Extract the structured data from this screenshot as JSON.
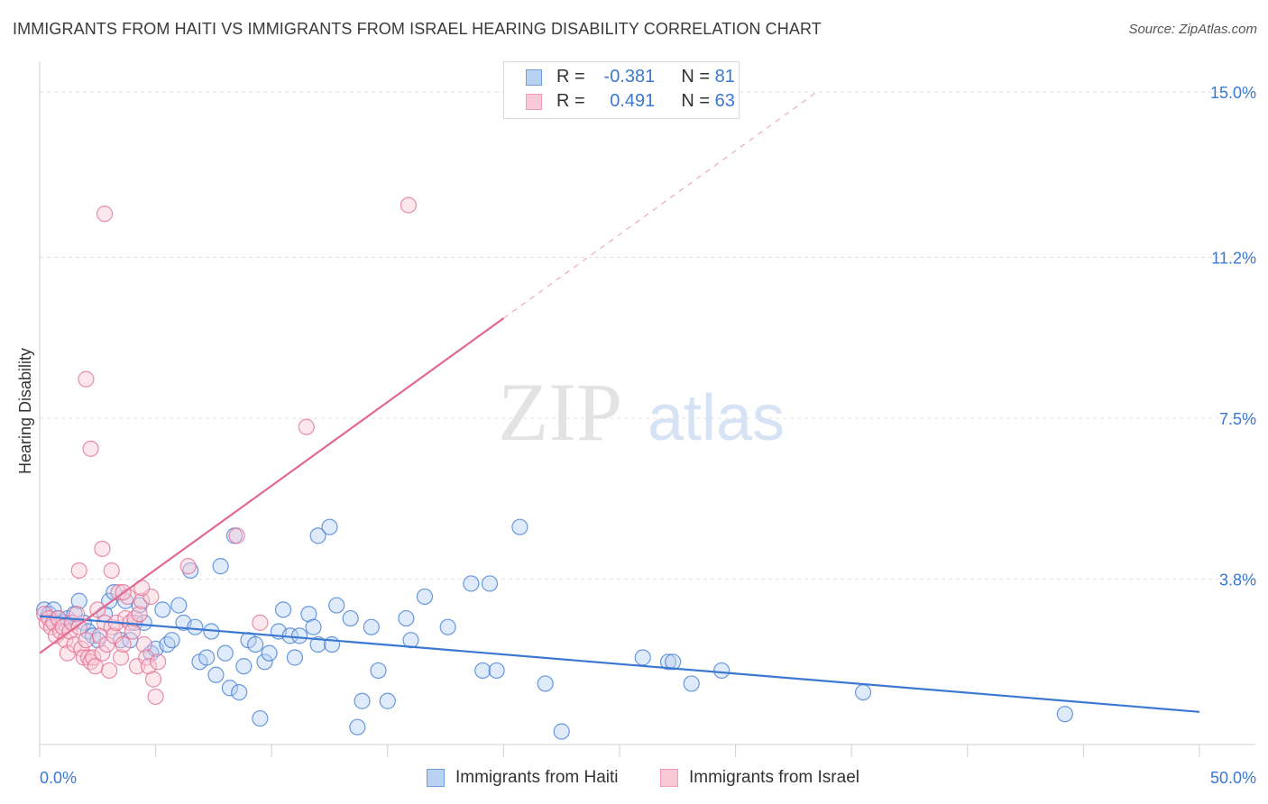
{
  "title": "IMMIGRANTS FROM HAITI VS IMMIGRANTS FROM ISRAEL HEARING DISABILITY CORRELATION CHART",
  "source": "Source: ZipAtlas.com",
  "watermark": {
    "zip": "ZIP",
    "atlas": "atlas"
  },
  "legend": {
    "rows": [
      {
        "r_label": "R =",
        "r_value": "-0.381",
        "n_label": "N =",
        "n_value": "81",
        "color": "#6c9de0",
        "fill": "#b9d1f3"
      },
      {
        "r_label": "R =",
        "r_value": "0.491",
        "n_label": "N =",
        "n_value": "63",
        "color": "#f09ab3",
        "fill": "#f9c9d7"
      }
    ]
  },
  "bottom_legend": [
    "Immigrants from Haiti",
    "Immigrants from Israel"
  ],
  "chart_data": {
    "type": "scatter",
    "title": "IMMIGRANTS FROM HAITI VS IMMIGRANTS FROM ISRAEL HEARING DISABILITY CORRELATION CHART",
    "xlabel": "",
    "ylabel": "Hearing Disability",
    "xlim": [
      0,
      50
    ],
    "ylim": [
      0,
      15.5
    ],
    "x_tick_labels": [
      "0.0%",
      "50.0%"
    ],
    "y_ticks": [
      3.8,
      7.5,
      11.2,
      15.0
    ],
    "y_tick_labels": [
      "3.8%",
      "7.5%",
      "11.2%",
      "15.0%"
    ],
    "grid": "horizontal dashed",
    "legend_position": "top-center",
    "series": [
      {
        "name": "Immigrants from Haiti",
        "color": "#3b78d1",
        "fill": "#b9d1f3",
        "trend": {
          "x": [
            0,
            50
          ],
          "y": [
            2.95,
            0.75
          ]
        },
        "points": [
          [
            0.2,
            3.1
          ],
          [
            0.4,
            3.0
          ],
          [
            0.6,
            3.1
          ],
          [
            0.8,
            2.9
          ],
          [
            1.0,
            2.8
          ],
          [
            1.2,
            2.9
          ],
          [
            1.5,
            3.0
          ],
          [
            1.7,
            3.3
          ],
          [
            1.9,
            2.8
          ],
          [
            2.1,
            2.6
          ],
          [
            2.3,
            2.5
          ],
          [
            2.5,
            2.4
          ],
          [
            2.8,
            3.0
          ],
          [
            3.0,
            3.3
          ],
          [
            3.2,
            3.5
          ],
          [
            3.5,
            2.4
          ],
          [
            3.7,
            3.3
          ],
          [
            3.9,
            2.4
          ],
          [
            4.1,
            2.8
          ],
          [
            4.3,
            3.2
          ],
          [
            4.5,
            2.8
          ],
          [
            4.8,
            2.1
          ],
          [
            5.0,
            2.2
          ],
          [
            5.3,
            3.1
          ],
          [
            5.5,
            2.3
          ],
          [
            5.7,
            2.4
          ],
          [
            6.0,
            3.2
          ],
          [
            6.2,
            2.8
          ],
          [
            6.5,
            4.0
          ],
          [
            6.7,
            2.7
          ],
          [
            6.9,
            1.9
          ],
          [
            7.2,
            2.0
          ],
          [
            7.4,
            2.6
          ],
          [
            7.6,
            1.6
          ],
          [
            7.8,
            4.1
          ],
          [
            8.0,
            2.1
          ],
          [
            8.2,
            1.3
          ],
          [
            8.4,
            4.8
          ],
          [
            8.6,
            1.2
          ],
          [
            8.8,
            1.8
          ],
          [
            9.0,
            2.4
          ],
          [
            9.3,
            2.3
          ],
          [
            9.5,
            0.6
          ],
          [
            9.7,
            1.9
          ],
          [
            9.9,
            2.1
          ],
          [
            10.3,
            2.6
          ],
          [
            10.5,
            3.1
          ],
          [
            10.8,
            2.5
          ],
          [
            11.0,
            2.0
          ],
          [
            11.2,
            2.5
          ],
          [
            11.6,
            3.0
          ],
          [
            11.8,
            2.7
          ],
          [
            12.0,
            2.3
          ],
          [
            12.0,
            4.8
          ],
          [
            12.5,
            5.0
          ],
          [
            12.6,
            2.3
          ],
          [
            12.8,
            3.2
          ],
          [
            13.4,
            2.9
          ],
          [
            13.7,
            0.4
          ],
          [
            13.9,
            1.0
          ],
          [
            14.3,
            2.7
          ],
          [
            14.6,
            1.7
          ],
          [
            15.0,
            1.0
          ],
          [
            15.8,
            2.9
          ],
          [
            16.0,
            2.4
          ],
          [
            16.6,
            3.4
          ],
          [
            17.6,
            2.7
          ],
          [
            18.6,
            3.7
          ],
          [
            19.1,
            1.7
          ],
          [
            19.4,
            3.7
          ],
          [
            19.7,
            1.7
          ],
          [
            20.7,
            5.0
          ],
          [
            21.8,
            1.4
          ],
          [
            22.5,
            0.3
          ],
          [
            26.0,
            2.0
          ],
          [
            27.1,
            1.9
          ],
          [
            27.3,
            1.9
          ],
          [
            28.1,
            1.4
          ],
          [
            29.4,
            1.7
          ],
          [
            35.5,
            1.2
          ],
          [
            44.2,
            0.7
          ]
        ]
      },
      {
        "name": "Immigrants from Israel",
        "color": "#e26a90",
        "fill": "#f9c9d7",
        "trend": {
          "x": [
            0,
            20
          ],
          "y": [
            2.1,
            9.8
          ]
        },
        "trend_extension": {
          "x": [
            20,
            33.5
          ],
          "y": [
            9.8,
            15.0
          ]
        },
        "points": [
          [
            0.2,
            3.0
          ],
          [
            0.3,
            2.8
          ],
          [
            0.4,
            2.9
          ],
          [
            0.5,
            2.7
          ],
          [
            0.6,
            2.8
          ],
          [
            0.7,
            2.5
          ],
          [
            0.8,
            2.9
          ],
          [
            0.9,
            2.6
          ],
          [
            1.0,
            2.7
          ],
          [
            1.1,
            2.4
          ],
          [
            1.2,
            2.1
          ],
          [
            1.3,
            2.6
          ],
          [
            1.4,
            2.8
          ],
          [
            1.5,
            2.3
          ],
          [
            1.6,
            3.0
          ],
          [
            1.7,
            2.7
          ],
          [
            1.8,
            2.2
          ],
          [
            1.9,
            2.0
          ],
          [
            2.0,
            2.4
          ],
          [
            2.1,
            2.0
          ],
          [
            2.2,
            1.9
          ],
          [
            2.3,
            2.0
          ],
          [
            2.4,
            1.8
          ],
          [
            2.5,
            3.1
          ],
          [
            2.6,
            2.5
          ],
          [
            2.7,
            2.1
          ],
          [
            2.8,
            2.8
          ],
          [
            2.9,
            2.3
          ],
          [
            3.0,
            1.7
          ],
          [
            3.1,
            2.7
          ],
          [
            3.2,
            2.5
          ],
          [
            3.3,
            2.8
          ],
          [
            3.4,
            3.5
          ],
          [
            3.5,
            2.0
          ],
          [
            3.6,
            2.3
          ],
          [
            3.7,
            2.9
          ],
          [
            3.8,
            3.4
          ],
          [
            3.9,
            2.8
          ],
          [
            4.0,
            2.6
          ],
          [
            4.1,
            2.9
          ],
          [
            4.2,
            1.8
          ],
          [
            4.3,
            3.0
          ],
          [
            4.4,
            3.3
          ],
          [
            4.5,
            2.3
          ],
          [
            4.6,
            2.0
          ],
          [
            4.7,
            1.8
          ],
          [
            4.8,
            3.4
          ],
          [
            4.9,
            1.5
          ],
          [
            5.0,
            1.1
          ],
          [
            5.1,
            1.9
          ],
          [
            1.7,
            4.0
          ],
          [
            2.0,
            8.4
          ],
          [
            2.2,
            6.8
          ],
          [
            2.7,
            4.5
          ],
          [
            2.8,
            12.2
          ],
          [
            3.1,
            4.0
          ],
          [
            3.6,
            3.5
          ],
          [
            4.4,
            3.6
          ],
          [
            6.4,
            4.1
          ],
          [
            8.5,
            4.8
          ],
          [
            9.5,
            2.8
          ],
          [
            11.5,
            7.3
          ],
          [
            15.9,
            12.4
          ]
        ]
      }
    ]
  }
}
